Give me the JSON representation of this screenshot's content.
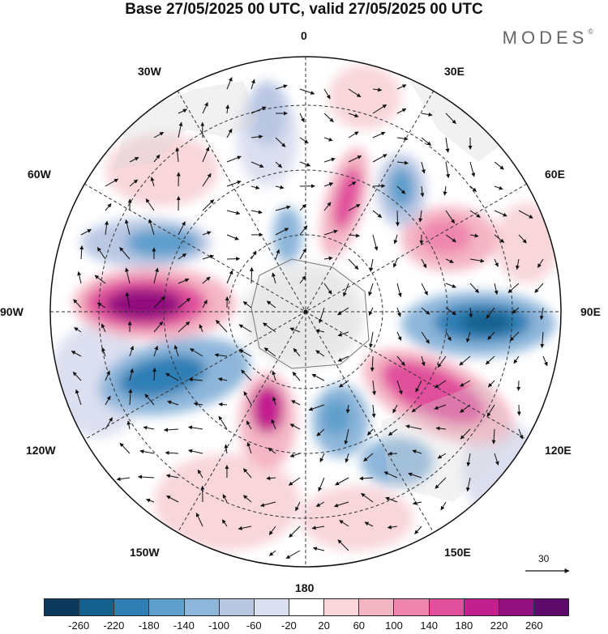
{
  "title": "Base 27/05/2025 00 UTC, valid 27/05/2025 00 UTC",
  "brand": "MODES",
  "brand_mark": "©",
  "longitude_labels": {
    "n": "0",
    "ne": "30E",
    "e1": "60E",
    "e": "90E",
    "se1": "120E",
    "se": "150E",
    "s": "180",
    "sw": "150W",
    "w1": "120W",
    "w": "90W",
    "nw1": "60W",
    "nw": "30W"
  },
  "reference_vector_label": "30",
  "colorbar": {
    "ticks": [
      "-260",
      "-220",
      "-180",
      "-140",
      "-100",
      "-60",
      "-20",
      "20",
      "60",
      "100",
      "140",
      "180",
      "220",
      "260"
    ],
    "colors": [
      "#0d3a5c",
      "#15608f",
      "#2f7fb5",
      "#5f9fcc",
      "#8db6da",
      "#b9c7e3",
      "#dcdff0",
      "#ffffff",
      "#f8d6da",
      "#f4b5c4",
      "#ee86ad",
      "#e0509b",
      "#c21f8f",
      "#93117f",
      "#5d0b6b"
    ]
  }
}
